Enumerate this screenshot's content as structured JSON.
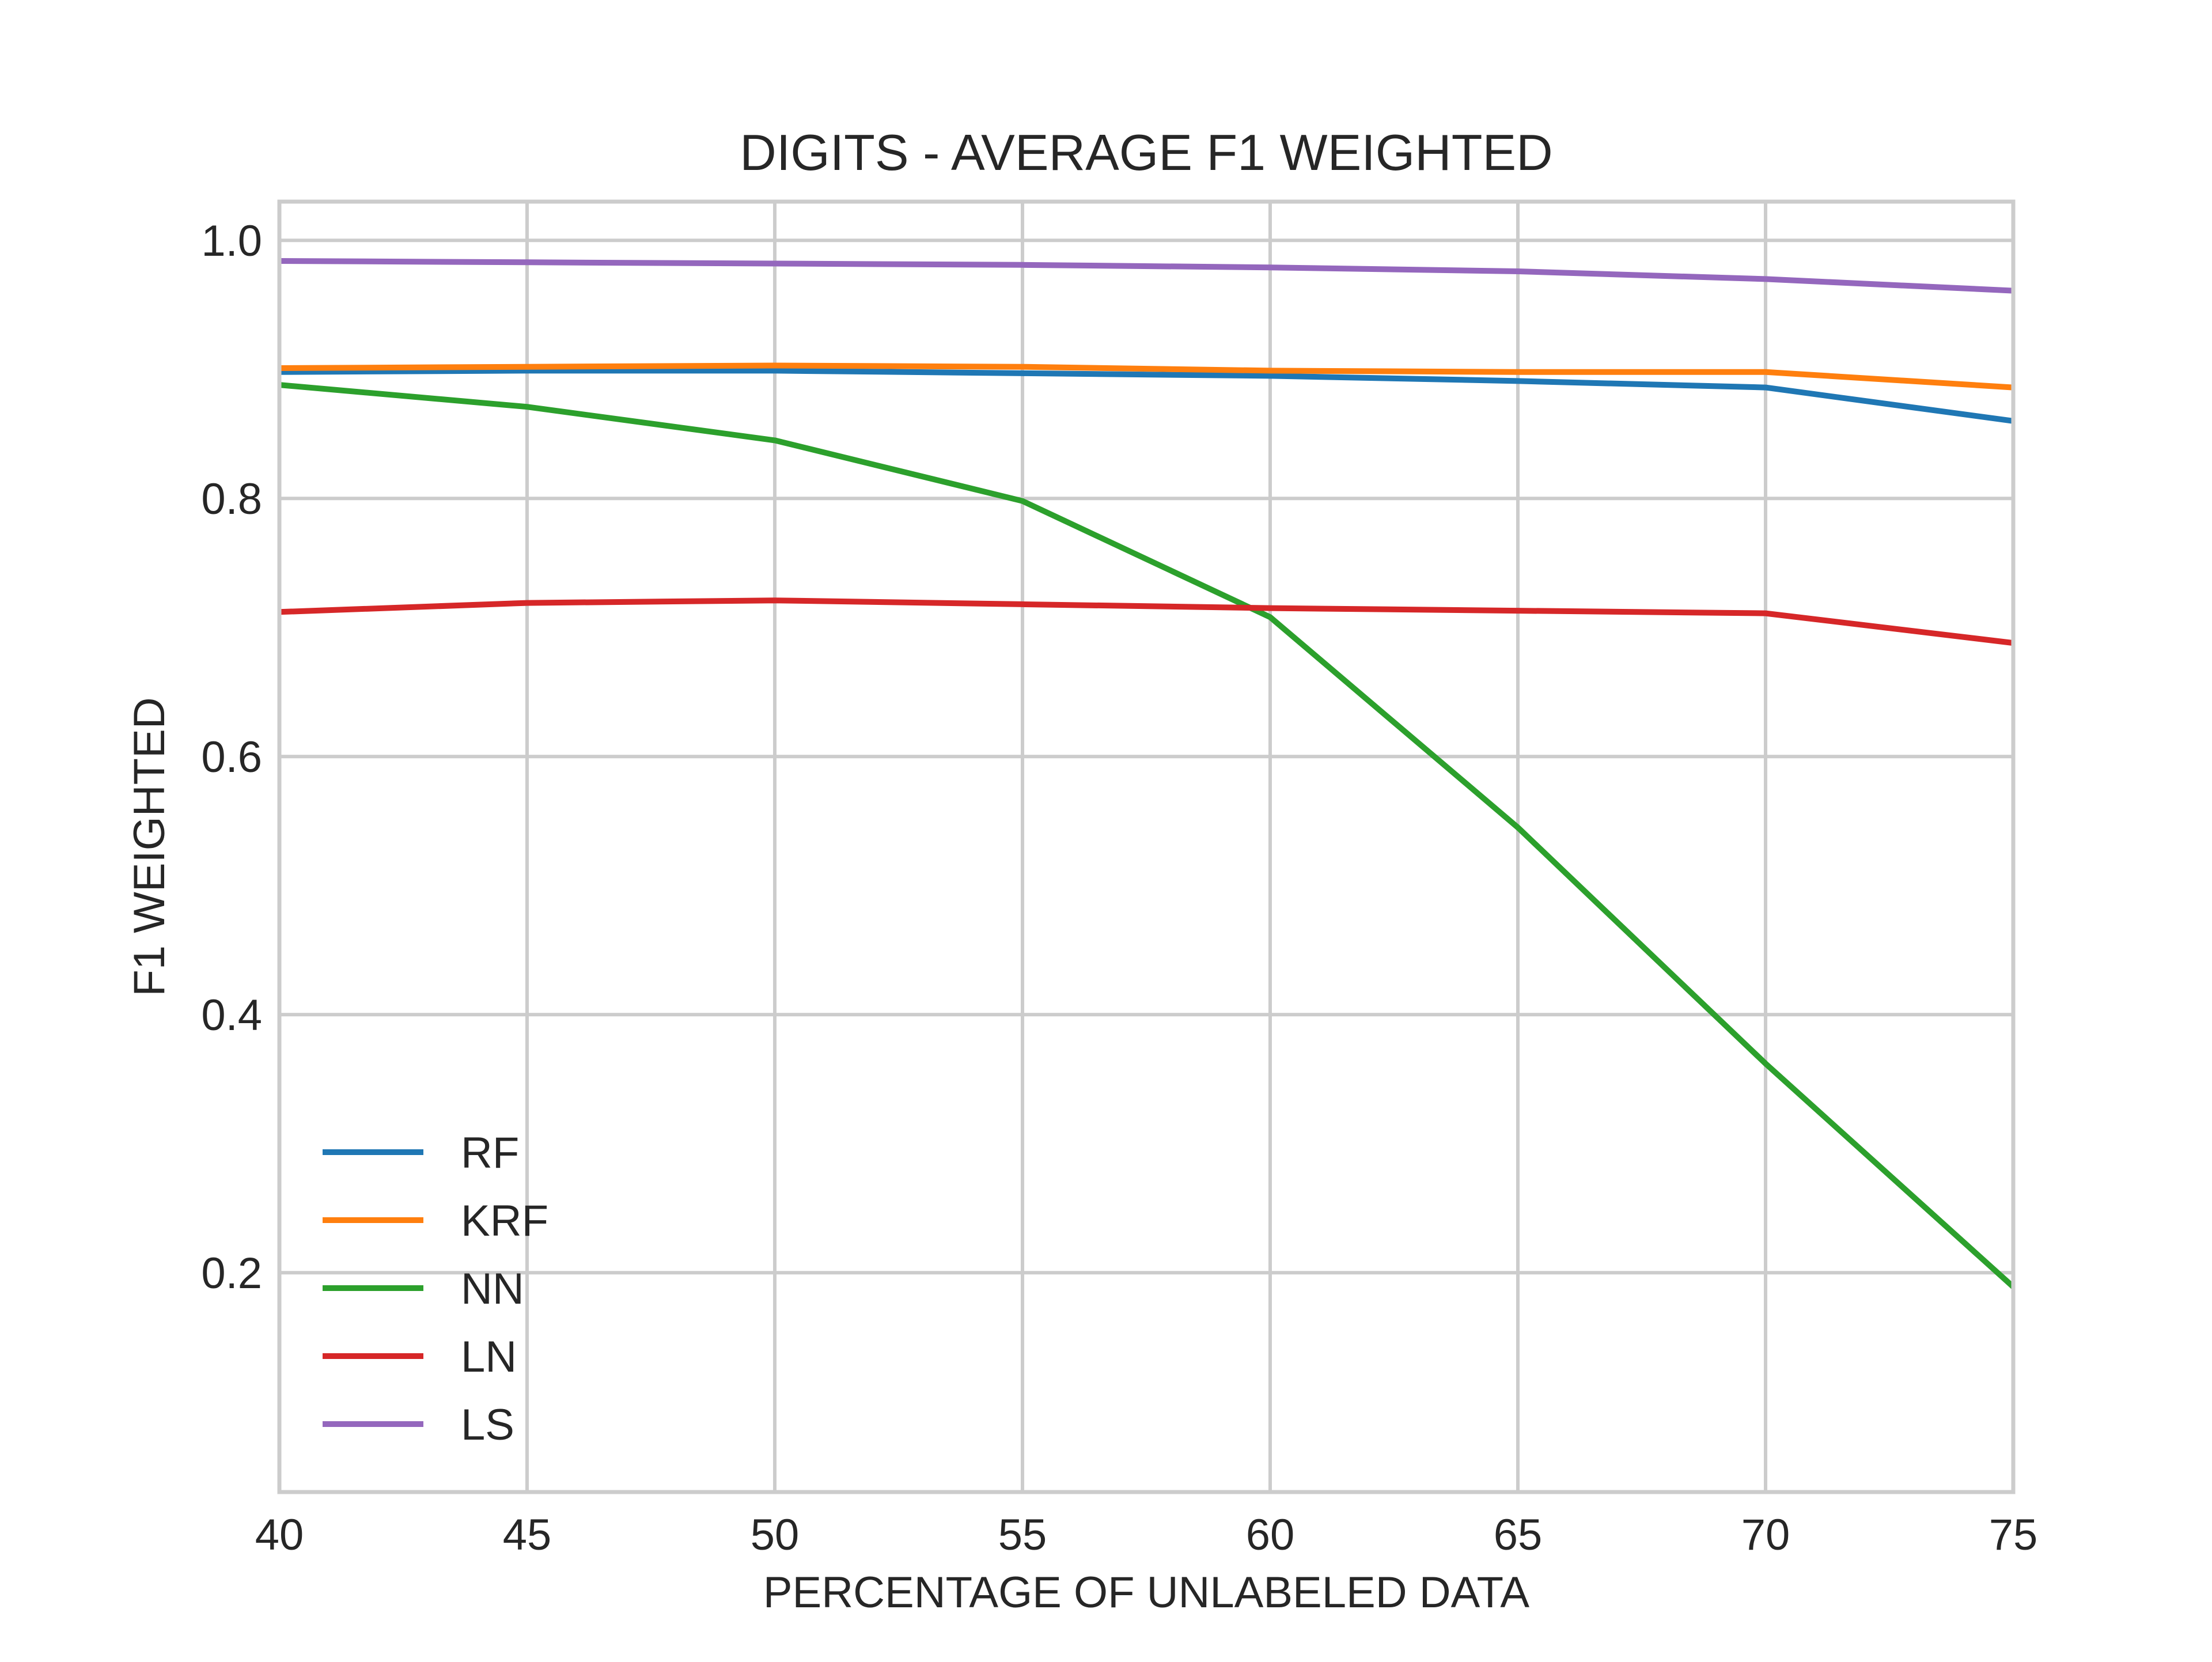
{
  "chart_data": {
    "type": "line",
    "title": "DIGITS - AVERAGE F1 WEIGHTED",
    "xlabel": "PERCENTAGE OF UNLABELED DATA",
    "ylabel": "F1 WEIGHTED",
    "xlim": [
      40,
      75
    ],
    "ylim": [
      0.03,
      1.03
    ],
    "x_ticks": [
      40,
      45,
      50,
      55,
      60,
      65,
      70,
      75
    ],
    "y_ticks": [
      0.2,
      0.4,
      0.6,
      0.8,
      1.0
    ],
    "x_tick_labels": [
      "40",
      "45",
      "50",
      "55",
      "60",
      "65",
      "70",
      "75"
    ],
    "y_tick_labels": [
      "0.2",
      "0.4",
      "0.6",
      "0.8",
      "1.0"
    ],
    "grid": true,
    "legend_position": "lower-left",
    "x": [
      40,
      45,
      50,
      55,
      60,
      65,
      70,
      75
    ],
    "series": [
      {
        "name": "RF",
        "color": "#1f77b4",
        "values": [
          0.898,
          0.899,
          0.899,
          0.897,
          0.895,
          0.891,
          0.886,
          0.86
        ]
      },
      {
        "name": "KRF",
        "color": "#ff7f0e",
        "values": [
          0.901,
          0.902,
          0.903,
          0.902,
          0.899,
          0.898,
          0.898,
          0.886
        ]
      },
      {
        "name": "NN",
        "color": "#2ca02c",
        "values": [
          0.888,
          0.871,
          0.845,
          0.798,
          0.708,
          0.545,
          0.362,
          0.189
        ]
      },
      {
        "name": "LN",
        "color": "#d62728",
        "values": [
          0.712,
          0.719,
          0.721,
          0.718,
          0.715,
          0.713,
          0.711,
          0.688
        ]
      },
      {
        "name": "LS",
        "color": "#9467bd",
        "values": [
          0.984,
          0.983,
          0.982,
          0.981,
          0.979,
          0.976,
          0.97,
          0.961
        ]
      }
    ]
  }
}
